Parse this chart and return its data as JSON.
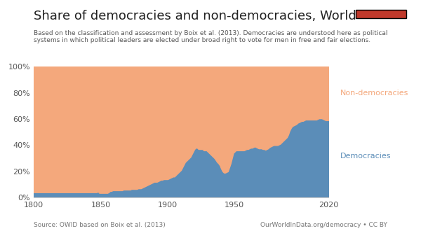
{
  "title": "Share of democracies and non-democracies, World",
  "subtitle": "Based on the classification and assessment by Boix et al. (2013). Democracies are understood here as political\nsystems in which political leaders are elected under broad right to vote for men in free and fair elections.",
  "source_left": "Source: OWID based on Boix et al. (2013)",
  "source_right": "OurWorldInData.org/democracy • CC BY",
  "democracy_label": "Democracies",
  "nondemocracy_label": "Non-democracies",
  "democracy_color": "#5b8db8",
  "nondemocracy_color": "#f4a87c",
  "background_color": "#ffffff",
  "years": [
    1800,
    1801,
    1802,
    1803,
    1804,
    1805,
    1806,
    1807,
    1808,
    1809,
    1810,
    1811,
    1812,
    1813,
    1814,
    1815,
    1816,
    1817,
    1818,
    1819,
    1820,
    1821,
    1822,
    1823,
    1824,
    1825,
    1826,
    1827,
    1828,
    1829,
    1830,
    1831,
    1832,
    1833,
    1834,
    1835,
    1836,
    1837,
    1838,
    1839,
    1840,
    1841,
    1842,
    1843,
    1844,
    1845,
    1846,
    1847,
    1848,
    1849,
    1850,
    1851,
    1852,
    1853,
    1854,
    1855,
    1856,
    1857,
    1858,
    1859,
    1860,
    1861,
    1862,
    1863,
    1864,
    1865,
    1866,
    1867,
    1868,
    1869,
    1870,
    1871,
    1872,
    1873,
    1874,
    1875,
    1876,
    1877,
    1878,
    1879,
    1880,
    1881,
    1882,
    1883,
    1884,
    1885,
    1886,
    1887,
    1888,
    1889,
    1890,
    1891,
    1892,
    1893,
    1894,
    1895,
    1896,
    1897,
    1898,
    1899,
    1900,
    1901,
    1902,
    1903,
    1904,
    1905,
    1906,
    1907,
    1908,
    1909,
    1910,
    1911,
    1912,
    1913,
    1914,
    1915,
    1916,
    1917,
    1918,
    1919,
    1920,
    1921,
    1922,
    1923,
    1924,
    1925,
    1926,
    1927,
    1928,
    1929,
    1930,
    1931,
    1932,
    1933,
    1934,
    1935,
    1936,
    1937,
    1938,
    1939,
    1940,
    1941,
    1942,
    1943,
    1944,
    1945,
    1946,
    1947,
    1948,
    1949,
    1950,
    1951,
    1952,
    1953,
    1954,
    1955,
    1956,
    1957,
    1958,
    1959,
    1960,
    1961,
    1962,
    1963,
    1964,
    1965,
    1966,
    1967,
    1968,
    1969,
    1970,
    1971,
    1972,
    1973,
    1974,
    1975,
    1976,
    1977,
    1978,
    1979,
    1980,
    1981,
    1982,
    1983,
    1984,
    1985,
    1986,
    1987,
    1988,
    1989,
    1990,
    1991,
    1992,
    1993,
    1994,
    1995,
    1996,
    1997,
    1998,
    1999,
    2000,
    2001,
    2002,
    2003,
    2004,
    2005,
    2006,
    2007,
    2008,
    2009,
    2010,
    2011,
    2012,
    2013,
    2014,
    2015,
    2016,
    2017,
    2018,
    2019,
    2020
  ],
  "democracy_share": [
    4.0,
    4.0,
    4.0,
    4.0,
    4.0,
    4.0,
    4.0,
    4.0,
    4.0,
    4.0,
    4.0,
    4.0,
    4.0,
    4.0,
    4.0,
    4.0,
    4.0,
    4.0,
    4.0,
    4.0,
    4.0,
    4.0,
    4.0,
    4.0,
    4.0,
    4.0,
    4.0,
    4.0,
    4.0,
    4.0,
    4.0,
    4.0,
    4.0,
    4.0,
    4.0,
    4.0,
    4.0,
    4.0,
    4.0,
    4.0,
    4.0,
    4.0,
    4.0,
    4.0,
    4.0,
    4.0,
    4.0,
    4.0,
    4.5,
    3.5,
    3.5,
    3.5,
    3.5,
    3.5,
    3.5,
    3.5,
    4.0,
    5.0,
    5.0,
    5.5,
    5.5,
    5.5,
    5.5,
    5.5,
    5.5,
    5.5,
    5.5,
    6.0,
    6.0,
    6.0,
    6.0,
    6.0,
    6.0,
    6.5,
    6.5,
    6.5,
    6.5,
    6.5,
    7.0,
    7.0,
    7.0,
    7.5,
    8.0,
    8.5,
    9.0,
    9.5,
    10.0,
    10.5,
    11.0,
    11.5,
    12.0,
    12.0,
    12.0,
    12.5,
    13.0,
    13.5,
    13.5,
    14.0,
    14.0,
    14.0,
    14.0,
    14.5,
    15.0,
    15.5,
    16.0,
    16.0,
    17.0,
    18.0,
    19.0,
    20.0,
    21.0,
    23.0,
    25.0,
    27.0,
    28.0,
    29.0,
    30.0,
    31.0,
    33.0,
    35.0,
    37.0,
    38.0,
    38.0,
    37.0,
    37.0,
    37.0,
    37.0,
    36.0,
    36.0,
    36.0,
    35.0,
    34.0,
    33.0,
    32.0,
    31.0,
    30.0,
    28.5,
    27.0,
    26.0,
    24.5,
    22.0,
    20.0,
    19.0,
    19.0,
    19.5,
    20.0,
    23.0,
    26.0,
    30.0,
    34.0,
    35.0,
    36.0,
    36.0,
    36.0,
    36.0,
    36.0,
    36.0,
    36.0,
    36.5,
    37.0,
    37.0,
    37.5,
    38.0,
    38.0,
    38.5,
    39.0,
    38.5,
    38.0,
    37.5,
    37.5,
    37.5,
    37.0,
    37.0,
    36.5,
    37.0,
    37.5,
    38.5,
    39.0,
    39.5,
    40.0,
    40.0,
    40.0,
    40.0,
    40.5,
    41.0,
    42.0,
    43.0,
    44.0,
    45.0,
    46.0,
    48.0,
    51.0,
    53.0,
    54.5,
    55.0,
    55.5,
    56.0,
    57.0,
    57.5,
    58.0,
    58.5,
    58.5,
    59.0,
    59.5,
    59.5,
    59.5,
    59.5,
    59.5,
    59.5,
    59.5,
    59.5,
    59.5,
    60.0,
    60.5,
    60.5,
    60.5,
    60.0,
    59.5,
    59.0,
    59.0,
    59.0
  ],
  "xlim": [
    1800,
    2020
  ],
  "ylim": [
    0,
    100
  ],
  "yticks": [
    0,
    20,
    40,
    60,
    80,
    100
  ],
  "xticks": [
    1800,
    1850,
    1900,
    1950,
    2020
  ],
  "logo_bg_color": "#1a3a5c",
  "logo_text_color": "#ffffff",
  "logo_red_color": "#c0392b"
}
